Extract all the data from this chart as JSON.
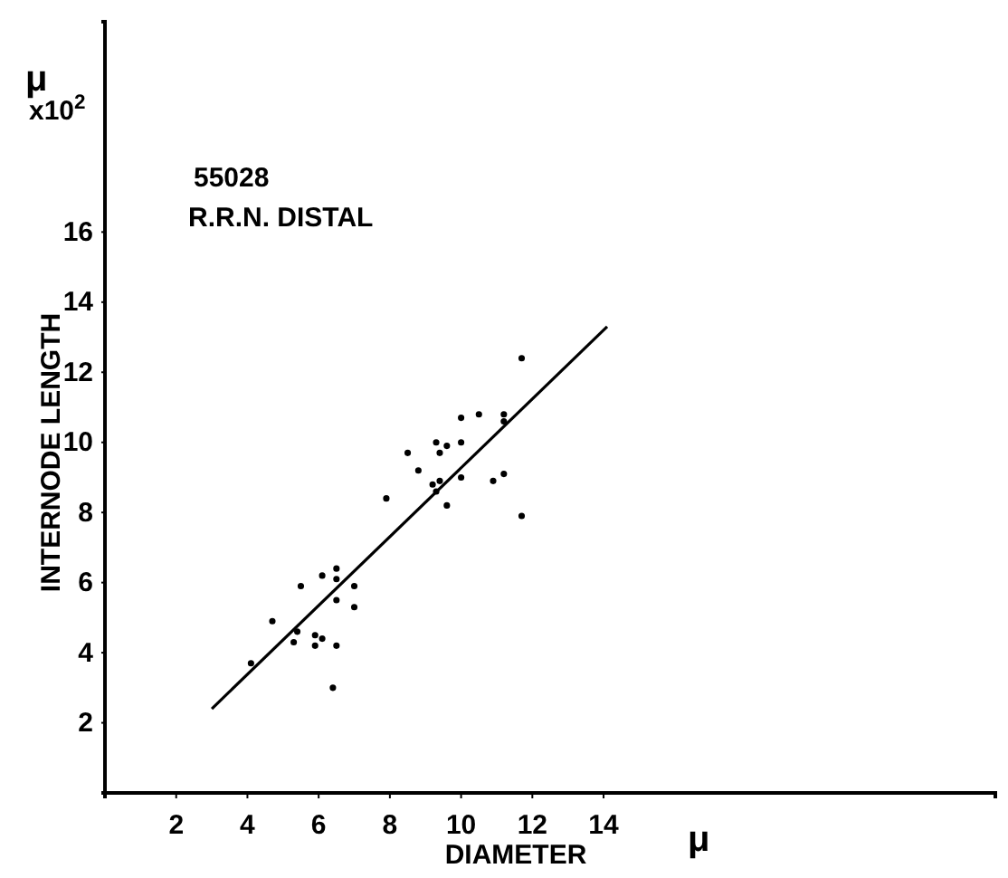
{
  "chart_data": {
    "type": "scatter",
    "title": "55028",
    "subtitle": "R.R.N. DISTAL",
    "xlabel": "DIAMETER",
    "ylabel": "INTERNODE LENGTH",
    "annotations": [
      "μ",
      "x10$^{2}$",
      "μ"
    ],
    "xlim": [
      0,
      25
    ],
    "ylim": [
      0,
      22
    ],
    "xticks": [
      2,
      4,
      6,
      8,
      10,
      12,
      14
    ],
    "yticks": [
      2,
      4,
      6,
      8,
      10,
      12,
      14,
      16
    ],
    "grid": false,
    "series": [
      {
        "color": "#000000",
        "marker": "circle",
        "x": [
          11.7,
          10.5,
          10.0,
          11.2,
          11.2,
          8.5,
          9.3,
          9.6,
          9.4,
          10.0,
          8.8,
          9.2,
          9.4,
          9.3,
          10.0,
          9.6,
          10.9,
          11.2,
          11.7,
          7.9,
          6.5,
          6.5,
          6.1,
          5.5,
          7.0,
          6.5,
          7.0,
          4.7,
          5.4,
          5.3,
          5.9,
          6.1,
          5.9,
          6.5,
          4.1,
          6.4
        ],
        "values": [
          12.4,
          10.8,
          10.7,
          10.8,
          10.6,
          9.7,
          10.0,
          9.9,
          9.7,
          10.0,
          9.2,
          8.8,
          8.9,
          8.6,
          9.0,
          8.2,
          8.9,
          9.1,
          7.9,
          8.4,
          6.4,
          6.1,
          6.2,
          5.9,
          5.9,
          5.5,
          5.3,
          4.9,
          4.6,
          4.3,
          4.5,
          4.4,
          4.2,
          4.2,
          3.7,
          3.0
        ]
      },
      {
        "type": "line",
        "color": "#000000",
        "marker": "none",
        "line_style": "solid",
        "x": [
          3.0,
          14.1
        ],
        "values": [
          2.4,
          13.3
        ]
      }
    ]
  }
}
